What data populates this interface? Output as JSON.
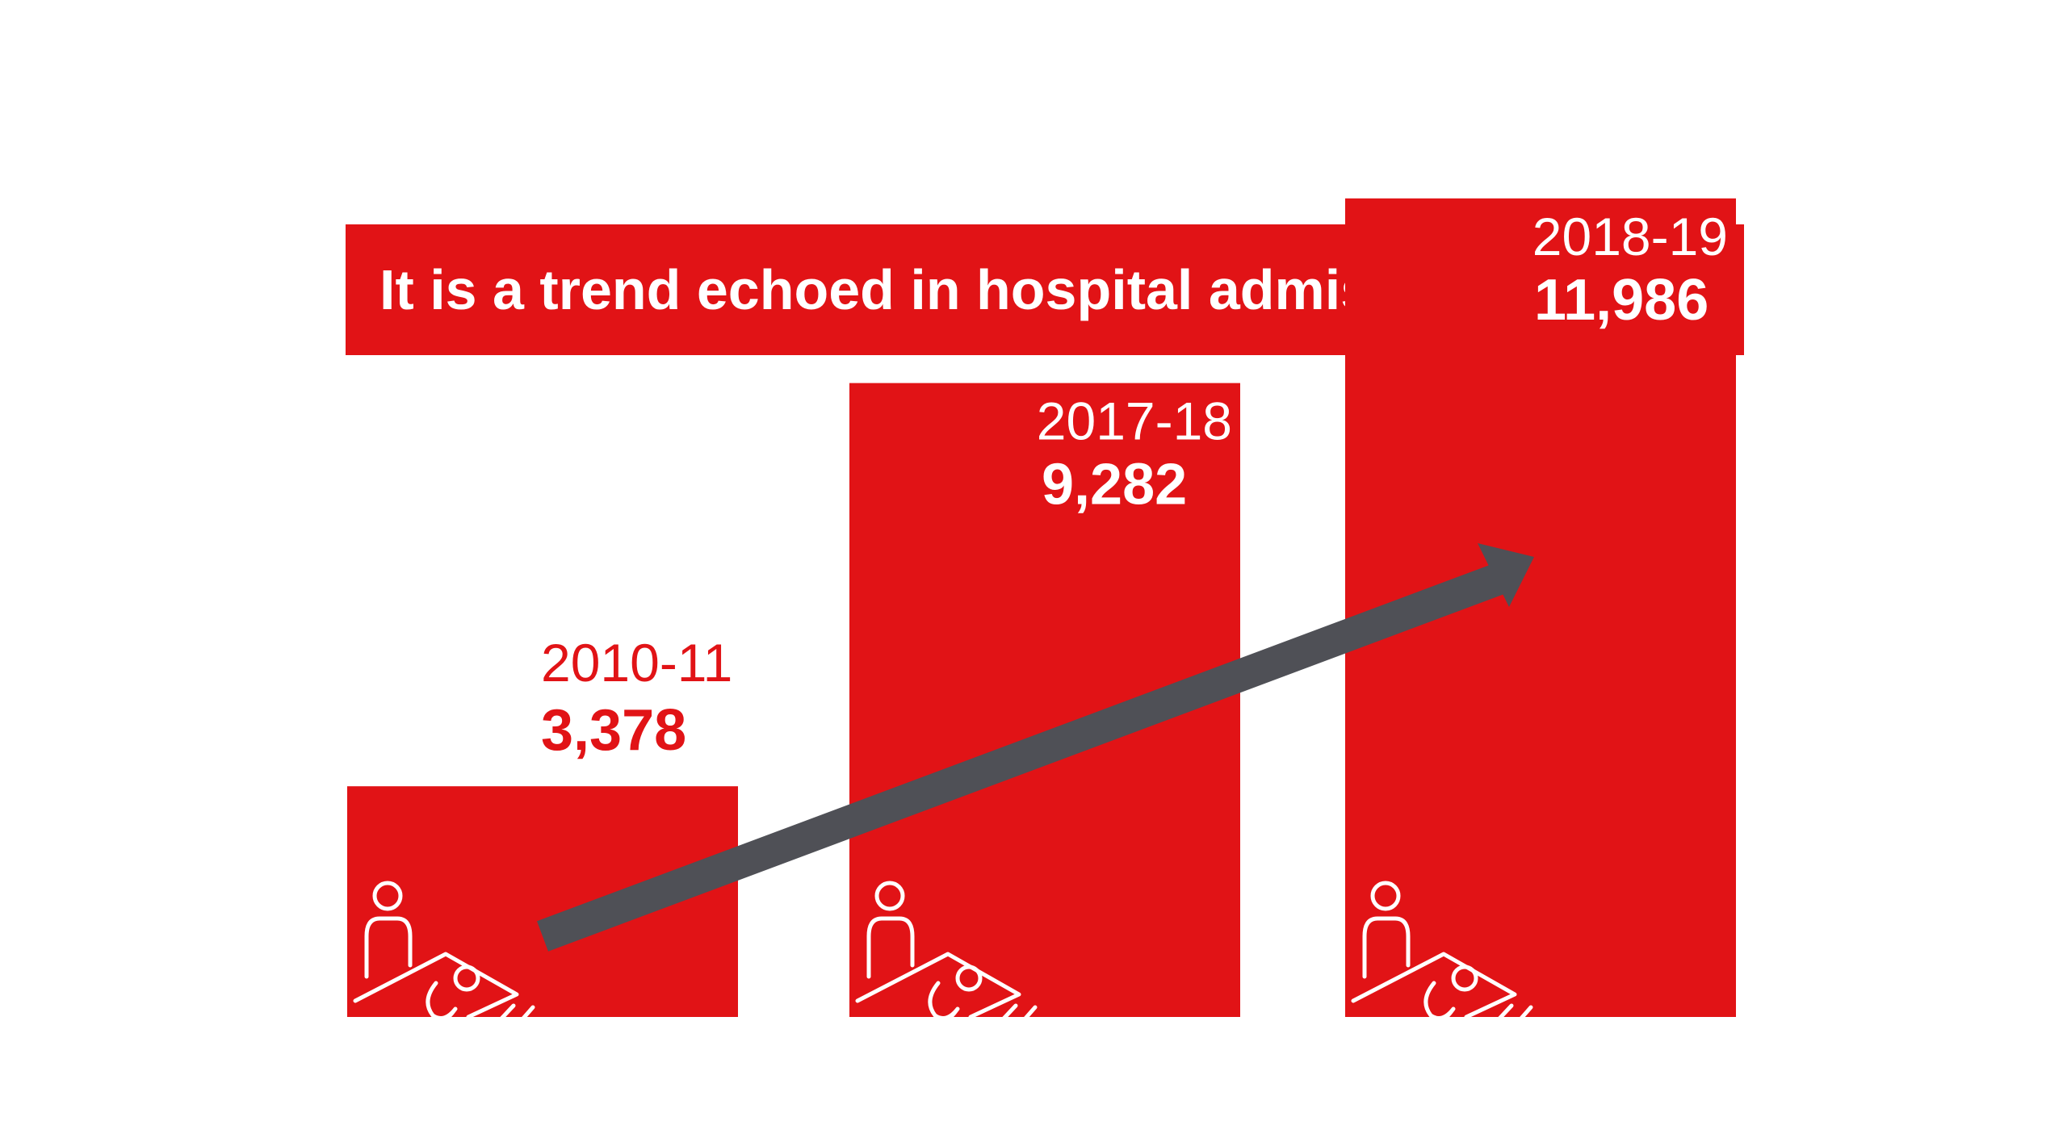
{
  "title": "It is a trend echoed in hospital admissions, too...",
  "colors": {
    "bar": "#e11316",
    "banner": "#e11316",
    "banner_text": "#ffffff",
    "label_on_bar": "#ffffff",
    "label_off_bar": "#e11316",
    "arrow": "#4f5056",
    "icon_stroke": "#ffffff",
    "background": "#ffffff"
  },
  "icons": {
    "bar_icon": "hospital-bed-patient-visitor-icon",
    "trend": "trend-arrow"
  },
  "chart_data": {
    "type": "bar",
    "title": "It is a trend echoed in hospital admissions, too...",
    "xlabel": "",
    "ylabel": "",
    "categories": [
      "2010-11",
      "2017-18",
      "2018-19"
    ],
    "series": [
      {
        "values": [
          3378,
          9282,
          11986
        ],
        "labels": [
          "3,378",
          "9,282",
          "11,986"
        ]
      }
    ],
    "ylim": [
      0,
      13000
    ],
    "grid": false,
    "legend": "none",
    "annotations": [
      "upward trend arrow across bars"
    ]
  }
}
